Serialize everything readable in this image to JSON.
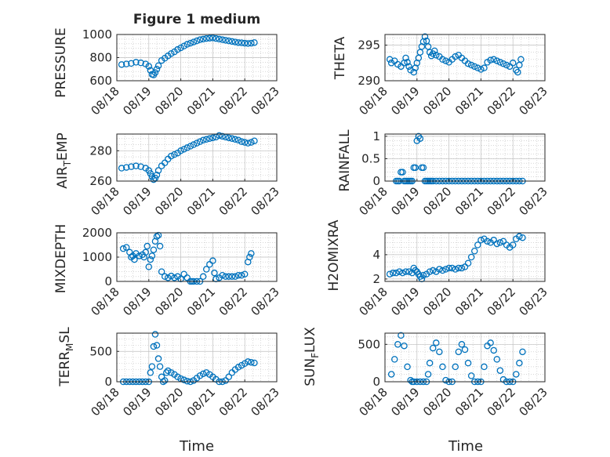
{
  "title": "Figure 1 medium",
  "x_tick_labels": [
    "08/18",
    "08/19",
    "08/20",
    "08/21",
    "08/22",
    "08/23"
  ],
  "x_label": "Time",
  "colors": {
    "marker": "#0072BD",
    "axis": "#262626",
    "grid": "#bfbfbf",
    "background": "#ffffff"
  },
  "chart_data": [
    {
      "type": "scatter",
      "title": "Figure 1 medium",
      "ylabel": "PRESSURE",
      "xlabel": "",
      "xlim": [
        0,
        5
      ],
      "ylim": [
        600,
        1000
      ],
      "yticks": [
        600,
        800,
        1000
      ],
      "grid": true,
      "x": [
        0.15,
        0.3,
        0.45,
        0.6,
        0.75,
        0.9,
        1.0,
        1.05,
        1.1,
        1.15,
        1.2,
        1.25,
        1.3,
        1.4,
        1.5,
        1.6,
        1.7,
        1.8,
        1.9,
        2.0,
        2.1,
        2.2,
        2.3,
        2.4,
        2.5,
        2.6,
        2.7,
        2.8,
        2.9,
        3.0,
        3.1,
        3.2,
        3.3,
        3.4,
        3.5,
        3.6,
        3.7,
        3.8,
        3.9,
        4.0,
        4.1,
        4.2,
        4.3
      ],
      "y": [
        740,
        745,
        750,
        760,
        755,
        745,
        725,
        690,
        655,
        650,
        670,
        700,
        730,
        775,
        795,
        815,
        835,
        850,
        870,
        885,
        900,
        915,
        925,
        935,
        945,
        955,
        960,
        965,
        968,
        970,
        965,
        960,
        955,
        950,
        945,
        940,
        935,
        930,
        928,
        925,
        922,
        925,
        930
      ]
    },
    {
      "type": "scatter",
      "ylabel": "THETA",
      "xlabel": "",
      "xlim": [
        0,
        5
      ],
      "ylim": [
        290,
        296.5
      ],
      "yticks": [
        290,
        295
      ],
      "grid": true,
      "x": [
        0.15,
        0.2,
        0.3,
        0.4,
        0.5,
        0.6,
        0.65,
        0.7,
        0.75,
        0.8,
        0.9,
        0.95,
        1.0,
        1.05,
        1.1,
        1.15,
        1.2,
        1.25,
        1.3,
        1.35,
        1.4,
        1.45,
        1.5,
        1.55,
        1.6,
        1.7,
        1.8,
        1.9,
        2.0,
        2.1,
        2.2,
        2.3,
        2.4,
        2.5,
        2.6,
        2.7,
        2.8,
        2.9,
        3.0,
        3.1,
        3.2,
        3.3,
        3.4,
        3.5,
        3.6,
        3.7,
        3.8,
        3.9,
        4.0,
        4.1,
        4.15,
        4.2,
        4.25
      ],
      "y": [
        293.0,
        292.5,
        292.8,
        292.3,
        292.0,
        292.5,
        293.2,
        292.6,
        292.0,
        291.5,
        291.2,
        291.8,
        292.5,
        293.2,
        294.0,
        294.8,
        295.5,
        296.2,
        295.6,
        294.8,
        294.0,
        293.5,
        293.8,
        294.2,
        293.6,
        293.4,
        293.0,
        292.8,
        292.6,
        293.0,
        293.4,
        293.6,
        293.2,
        292.8,
        292.4,
        292.2,
        292.0,
        291.8,
        291.6,
        291.8,
        292.6,
        292.9,
        293.0,
        292.8,
        292.6,
        292.4,
        292.2,
        292.0,
        292.5,
        291.5,
        291.2,
        292.2,
        293.0
      ]
    },
    {
      "type": "scatter",
      "ylabel": "AIR_TEMP",
      "xlabel": "",
      "xlim": [
        0,
        5
      ],
      "ylim": [
        260,
        291
      ],
      "yticks": [
        260,
        280
      ],
      "grid": true,
      "x": [
        0.15,
        0.3,
        0.45,
        0.6,
        0.75,
        0.9,
        1.0,
        1.05,
        1.1,
        1.15,
        1.2,
        1.25,
        1.3,
        1.4,
        1.5,
        1.6,
        1.7,
        1.8,
        1.9,
        2.0,
        2.1,
        2.2,
        2.3,
        2.4,
        2.5,
        2.6,
        2.7,
        2.8,
        2.9,
        3.0,
        3.1,
        3.2,
        3.3,
        3.4,
        3.5,
        3.6,
        3.7,
        3.8,
        3.9,
        4.0,
        4.1,
        4.2,
        4.3
      ],
      "y": [
        268.5,
        269,
        269.5,
        270,
        269.5,
        268.5,
        267,
        265,
        263,
        261,
        262,
        264,
        267,
        270,
        272,
        274.5,
        276.5,
        277.5,
        278.5,
        280,
        281,
        282,
        283,
        284,
        285,
        286,
        287,
        287.5,
        288,
        288.5,
        289,
        290,
        289.5,
        289,
        288.5,
        288,
        287.5,
        287,
        286,
        285.5,
        285,
        285.5,
        286.5
      ]
    },
    {
      "type": "scatter",
      "ylabel": "RAINFALL",
      "xlabel": "",
      "xlim": [
        0,
        5
      ],
      "ylim": [
        0,
        1.05
      ],
      "yticks": [
        0,
        0.5,
        1
      ],
      "grid": true,
      "x": [
        0.35,
        0.4,
        0.45,
        0.5,
        0.55,
        0.6,
        0.65,
        0.7,
        0.75,
        0.8,
        0.85,
        0.9,
        0.95,
        1.0,
        1.05,
        1.1,
        1.15,
        1.2,
        1.25,
        1.3,
        1.35,
        1.4,
        1.45,
        1.5,
        1.6,
        1.7,
        1.8,
        1.9,
        2.0,
        2.1,
        2.2,
        2.3,
        2.4,
        2.5,
        2.6,
        2.7,
        2.8,
        2.9,
        3.0,
        3.1,
        3.2,
        3.3,
        3.4,
        3.5,
        3.6,
        3.7,
        3.8,
        3.9,
        4.0,
        4.1,
        4.2,
        4.3
      ],
      "y": [
        0,
        0,
        0,
        0.2,
        0.2,
        0,
        0,
        0,
        0,
        0,
        0,
        0.3,
        0.3,
        0.9,
        1.0,
        0.95,
        0.3,
        0.3,
        0,
        0,
        0,
        0,
        0,
        0,
        0,
        0,
        0,
        0,
        0,
        0,
        0,
        0,
        0,
        0,
        0,
        0,
        0,
        0,
        0,
        0,
        0,
        0,
        0,
        0,
        0,
        0,
        0,
        0,
        0,
        0,
        0,
        0
      ]
    },
    {
      "type": "scatter",
      "ylabel": "MIXDEPTH",
      "xlabel": "",
      "xlim": [
        0,
        5
      ],
      "ylim": [
        0,
        2000
      ],
      "yticks": [
        0,
        1000,
        2000
      ],
      "grid": true,
      "x": [
        0.2,
        0.3,
        0.4,
        0.45,
        0.5,
        0.55,
        0.6,
        0.7,
        0.8,
        0.85,
        0.9,
        0.95,
        1.0,
        1.05,
        1.1,
        1.15,
        1.2,
        1.25,
        1.3,
        1.35,
        1.4,
        1.5,
        1.6,
        1.7,
        1.8,
        1.9,
        2.0,
        2.1,
        2.2,
        2.3,
        2.35,
        2.4,
        2.5,
        2.6,
        2.7,
        2.8,
        2.9,
        3.0,
        3.05,
        3.1,
        3.2,
        3.3,
        3.4,
        3.5,
        3.6,
        3.7,
        3.8,
        3.9,
        4.0,
        4.1,
        4.15,
        4.2
      ],
      "y": [
        1350,
        1400,
        1200,
        1000,
        1050,
        900,
        1150,
        1050,
        1100,
        1000,
        1200,
        1450,
        600,
        900,
        1050,
        1300,
        1650,
        1850,
        1900,
        1450,
        400,
        200,
        150,
        220,
        150,
        200,
        100,
        300,
        150,
        0,
        0,
        0,
        0,
        0,
        200,
        500,
        700,
        850,
        350,
        100,
        150,
        250,
        200,
        200,
        200,
        200,
        250,
        250,
        300,
        800,
        1000,
        1150
      ]
    },
    {
      "type": "scatter",
      "ylabel": "H2OMIXRA",
      "xlabel": "",
      "xlim": [
        0,
        5
      ],
      "ylim": [
        1.8,
        5.8
      ],
      "yticks": [
        2,
        4
      ],
      "grid": true,
      "x": [
        0.15,
        0.25,
        0.35,
        0.45,
        0.55,
        0.65,
        0.75,
        0.85,
        0.9,
        0.95,
        1.0,
        1.05,
        1.1,
        1.15,
        1.2,
        1.3,
        1.4,
        1.5,
        1.6,
        1.7,
        1.8,
        1.9,
        2.0,
        2.1,
        2.2,
        2.3,
        2.4,
        2.5,
        2.6,
        2.7,
        2.8,
        2.9,
        3.0,
        3.1,
        3.2,
        3.3,
        3.4,
        3.5,
        3.6,
        3.7,
        3.8,
        3.9,
        4.0,
        4.1,
        4.2,
        4.3
      ],
      "y": [
        2.4,
        2.5,
        2.5,
        2.6,
        2.5,
        2.6,
        2.6,
        2.5,
        2.9,
        2.7,
        2.6,
        2.4,
        2.2,
        2.0,
        2.3,
        2.4,
        2.6,
        2.7,
        2.6,
        2.8,
        2.7,
        2.8,
        2.9,
        2.9,
        2.8,
        2.9,
        2.9,
        3.0,
        3.3,
        3.8,
        4.3,
        4.8,
        5.2,
        5.3,
        5.1,
        5.0,
        5.2,
        4.9,
        5.0,
        5.1,
        4.8,
        4.6,
        4.8,
        5.3,
        5.5,
        5.4
      ]
    },
    {
      "type": "scatter",
      "ylabel": "TERR_MSL",
      "xlabel": "",
      "xlim": [
        0,
        5
      ],
      "ylim": [
        0,
        800
      ],
      "yticks": [
        0,
        500
      ],
      "grid": true,
      "x": [
        0.2,
        0.3,
        0.4,
        0.5,
        0.6,
        0.7,
        0.8,
        0.9,
        1.0,
        1.05,
        1.1,
        1.15,
        1.2,
        1.25,
        1.3,
        1.35,
        1.4,
        1.45,
        1.5,
        1.55,
        1.6,
        1.7,
        1.8,
        1.9,
        2.0,
        2.1,
        2.2,
        2.3,
        2.4,
        2.5,
        2.6,
        2.7,
        2.8,
        2.9,
        3.0,
        3.1,
        3.2,
        3.3,
        3.4,
        3.5,
        3.6,
        3.7,
        3.8,
        3.9,
        4.0,
        4.1,
        4.2,
        4.3
      ],
      "y": [
        0,
        0,
        0,
        0,
        0,
        0,
        0,
        0,
        0,
        150,
        250,
        580,
        780,
        600,
        380,
        250,
        80,
        0,
        20,
        150,
        180,
        150,
        120,
        80,
        50,
        30,
        10,
        0,
        20,
        60,
        100,
        130,
        150,
        120,
        80,
        40,
        0,
        0,
        20,
        80,
        150,
        200,
        240,
        270,
        300,
        330,
        320,
        310
      ]
    },
    {
      "type": "scatter",
      "ylabel": "SUN_FLUX",
      "xlabel": "",
      "xlim": [
        0,
        5
      ],
      "ylim": [
        0,
        650
      ],
      "yticks": [
        0,
        500
      ],
      "grid": true,
      "x": [
        0.2,
        0.3,
        0.4,
        0.5,
        0.6,
        0.7,
        0.8,
        0.85,
        0.9,
        1.0,
        1.1,
        1.2,
        1.3,
        1.35,
        1.4,
        1.5,
        1.6,
        1.7,
        1.8,
        1.9,
        2.0,
        2.1,
        2.2,
        2.3,
        2.4,
        2.5,
        2.6,
        2.7,
        2.8,
        2.9,
        3.0,
        3.1,
        3.2,
        3.3,
        3.4,
        3.5,
        3.6,
        3.7,
        3.8,
        3.9,
        4.0,
        4.1,
        4.2,
        4.3
      ],
      "y": [
        100,
        300,
        500,
        620,
        480,
        200,
        20,
        0,
        0,
        0,
        0,
        0,
        0,
        100,
        250,
        450,
        520,
        400,
        200,
        20,
        0,
        0,
        200,
        400,
        500,
        430,
        250,
        80,
        0,
        0,
        0,
        200,
        480,
        520,
        420,
        300,
        150,
        30,
        0,
        0,
        0,
        100,
        250,
        400
      ]
    }
  ]
}
